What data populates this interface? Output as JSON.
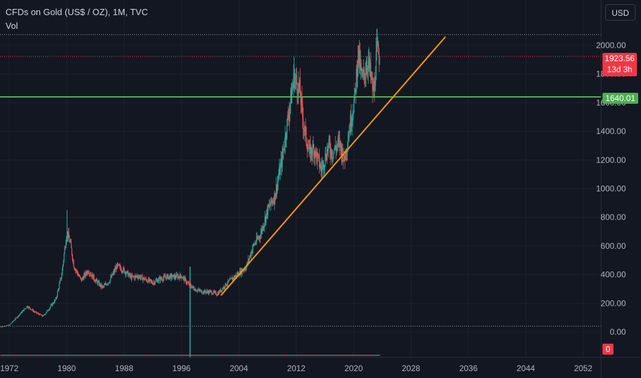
{
  "header": {
    "symbol_title": "CFDs on Gold (US$ / OZ), 1M, TVC",
    "volume_label": "Vol"
  },
  "toolbar": {
    "currency_label": "USD"
  },
  "colors": {
    "background": "#131722",
    "grid": "#1e222d",
    "up_candle": "#26a69a",
    "down_candle": "#ef5350",
    "trendline": "#ff9800",
    "support_line": "#4caf50",
    "last_price": "#f23645",
    "volume_bar": "#26a69a"
  },
  "price_tag": {
    "value": "1923.56",
    "countdown": "13d 3h"
  },
  "level_tag": {
    "value": "1640.01"
  },
  "volume_tag": {
    "value": "0"
  },
  "chart_data": {
    "type": "candlestick",
    "title": "CFDs on Gold (US$ / OZ), 1M, TVC",
    "x_ticks": [
      "1972",
      "1980",
      "1988",
      "1996",
      "2004",
      "2012",
      "2020",
      "2028",
      "2036",
      "2044",
      "2052"
    ],
    "y_ticks": [
      "0.00",
      "200.00",
      "400.00",
      "600.00",
      "800.00",
      "1000.00",
      "1200.00",
      "1400.00",
      "1600.00",
      "1800.00",
      "2000.00"
    ],
    "x_range": [
      1970.7,
      2054.5
    ],
    "y_range": [
      0,
      2000
    ],
    "price_path": [
      {
        "x": 1970.8,
        "y": 36
      },
      {
        "x": 1972,
        "y": 48
      },
      {
        "x": 1973,
        "y": 100
      },
      {
        "x": 1974.5,
        "y": 180
      },
      {
        "x": 1975.5,
        "y": 140
      },
      {
        "x": 1976.7,
        "y": 110
      },
      {
        "x": 1977.5,
        "y": 160
      },
      {
        "x": 1978.5,
        "y": 230
      },
      {
        "x": 1979.3,
        "y": 400
      },
      {
        "x": 1980.0,
        "y": 700
      },
      {
        "x": 1980.5,
        "y": 620
      },
      {
        "x": 1981,
        "y": 460
      },
      {
        "x": 1982,
        "y": 360
      },
      {
        "x": 1983,
        "y": 430
      },
      {
        "x": 1984,
        "y": 360
      },
      {
        "x": 1985,
        "y": 310
      },
      {
        "x": 1986,
        "y": 360
      },
      {
        "x": 1987,
        "y": 460
      },
      {
        "x": 1988,
        "y": 430
      },
      {
        "x": 1989,
        "y": 380
      },
      {
        "x": 1990,
        "y": 390
      },
      {
        "x": 1991,
        "y": 365
      },
      {
        "x": 1992,
        "y": 345
      },
      {
        "x": 1993,
        "y": 370
      },
      {
        "x": 1994,
        "y": 385
      },
      {
        "x": 1995,
        "y": 385
      },
      {
        "x": 1996,
        "y": 390
      },
      {
        "x": 1997,
        "y": 330
      },
      {
        "x": 1998,
        "y": 295
      },
      {
        "x": 1999,
        "y": 280
      },
      {
        "x": 2000,
        "y": 280
      },
      {
        "x": 2001,
        "y": 265
      },
      {
        "x": 2002,
        "y": 320
      },
      {
        "x": 2003,
        "y": 370
      },
      {
        "x": 2004,
        "y": 410
      },
      {
        "x": 2005,
        "y": 450
      },
      {
        "x": 2006,
        "y": 600
      },
      {
        "x": 2007,
        "y": 680
      },
      {
        "x": 2008,
        "y": 850
      },
      {
        "x": 2009,
        "y": 950
      },
      {
        "x": 2010,
        "y": 1200
      },
      {
        "x": 2011,
        "y": 1550
      },
      {
        "x": 2011.7,
        "y": 1780
      },
      {
        "x": 2012.5,
        "y": 1680
      },
      {
        "x": 2013,
        "y": 1450
      },
      {
        "x": 2013.8,
        "y": 1250
      },
      {
        "x": 2014.5,
        "y": 1280
      },
      {
        "x": 2015.5,
        "y": 1130
      },
      {
        "x": 2016.5,
        "y": 1300
      },
      {
        "x": 2017,
        "y": 1250
      },
      {
        "x": 2018,
        "y": 1320
      },
      {
        "x": 2018.7,
        "y": 1200
      },
      {
        "x": 2019.5,
        "y": 1450
      },
      {
        "x": 2020.2,
        "y": 1650
      },
      {
        "x": 2020.6,
        "y": 1950
      },
      {
        "x": 2021.2,
        "y": 1750
      },
      {
        "x": 2022,
        "y": 1900
      },
      {
        "x": 2022.8,
        "y": 1650
      },
      {
        "x": 2023.2,
        "y": 1950
      },
      {
        "x": 2023.7,
        "y": 1923.56
      }
    ],
    "trendline": [
      {
        "x": 2001.5,
        "y": 255
      },
      {
        "x": 2032.8,
        "y": 2060
      }
    ],
    "horizontal_level": 1640.01,
    "last_price": 1923.56,
    "all_time_high_guide": 2075,
    "volume_spike_year": 1997.2
  }
}
